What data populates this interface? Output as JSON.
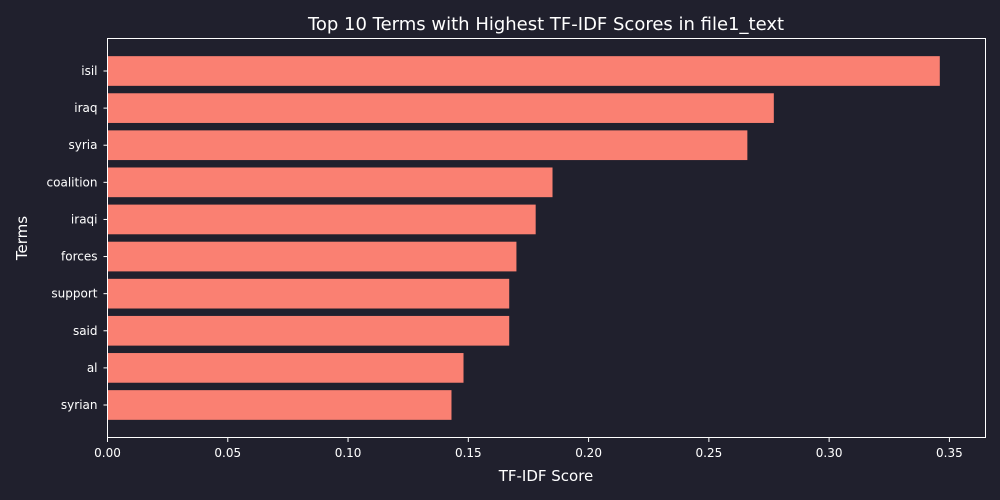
{
  "chart_data": {
    "type": "bar",
    "orientation": "horizontal",
    "title": "Top 10 Terms with Highest TF-IDF Scores in file1_text",
    "xlabel": "TF-IDF Score",
    "ylabel": "Terms",
    "categories": [
      "isil",
      "iraq",
      "syria",
      "coalition",
      "iraqi",
      "forces",
      "support",
      "said",
      "al",
      "syrian"
    ],
    "values": [
      0.346,
      0.277,
      0.266,
      0.185,
      0.178,
      0.17,
      0.167,
      0.167,
      0.148,
      0.143
    ],
    "xlim": [
      0,
      0.365
    ],
    "xticks": [
      0.0,
      0.05,
      0.1,
      0.15,
      0.2,
      0.25,
      0.3,
      0.35
    ],
    "xtick_labels": [
      "0.00",
      "0.05",
      "0.10",
      "0.15",
      "0.20",
      "0.25",
      "0.30",
      "0.35"
    ],
    "grid": false,
    "legend": "none",
    "bar_color": "#fa8072",
    "background_color": "#20202d",
    "text_color": "#ffffff"
  }
}
